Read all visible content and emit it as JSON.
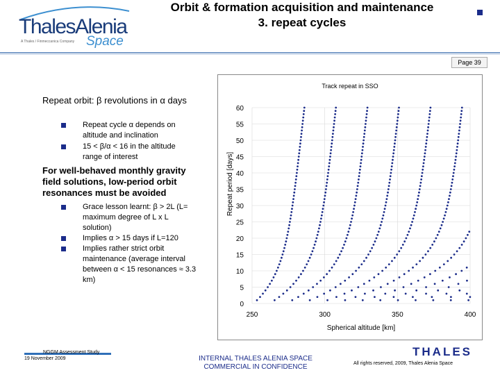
{
  "header": {
    "logo_main": "ThalesAlenia",
    "logo_space": "Space",
    "logo_tagline": "A Thales / Finmeccanica Company",
    "title_line1": "Orbit & formation acquisition and maintenance",
    "title_line2": "3. repeat cycles",
    "page_label": "Page 39"
  },
  "body": {
    "heading1": "Repeat orbit: β revolutions in α days",
    "bullets1": [
      "Repeat cycle α depends on altitude and inclination",
      "15 < β/α < 16 in the altitude range of interest"
    ],
    "heading2": "For well-behaved monthly gravity field solutions, low-period orbit resonances must be avoided",
    "bullets2": [
      "Grace lesson learnt: β > 2L (L= maximum degree of L x L solution)",
      "Implies α > 15 days if L=120",
      "Implies rather strict orbit maintenance (average interval between α < 15 resonances ≈ 3.3 km)"
    ]
  },
  "chart_data": {
    "type": "scatter",
    "title": "Track repeat in SSO",
    "xlabel": "Spherical altitude [km]",
    "ylabel": "Repeat period [days]",
    "xlim": [
      250,
      400
    ],
    "ylim": [
      0,
      60
    ],
    "xticks": [
      250,
      300,
      350,
      400
    ],
    "yticks": [
      0,
      5,
      10,
      15,
      20,
      25,
      30,
      35,
      40,
      45,
      50,
      55,
      60
    ],
    "grid": true,
    "description_note": "Each series is a resonance curve of repeat orbits (points every integer day from its start day up to 60 days)",
    "series_start_altitudes_km": [
      251,
      262,
      273,
      284,
      295,
      306,
      317,
      328,
      339,
      350,
      361,
      372,
      383,
      394
    ],
    "period_span_days": [
      1,
      60
    ]
  },
  "footer": {
    "study": "NGGM Assessment Study",
    "date": "19 November 2009",
    "internal_line1": "INTERNAL THALES ALENIA SPACE",
    "internal_line2": "COMMERCIAL IN CONFIDENCE",
    "brand": "THALES",
    "rights": "All rights reserved, 2009, Thales Alenia Space"
  },
  "colors": {
    "accent": "#1b2c8a",
    "rule": "#7a9cc8",
    "point": "#1b2c8a"
  }
}
